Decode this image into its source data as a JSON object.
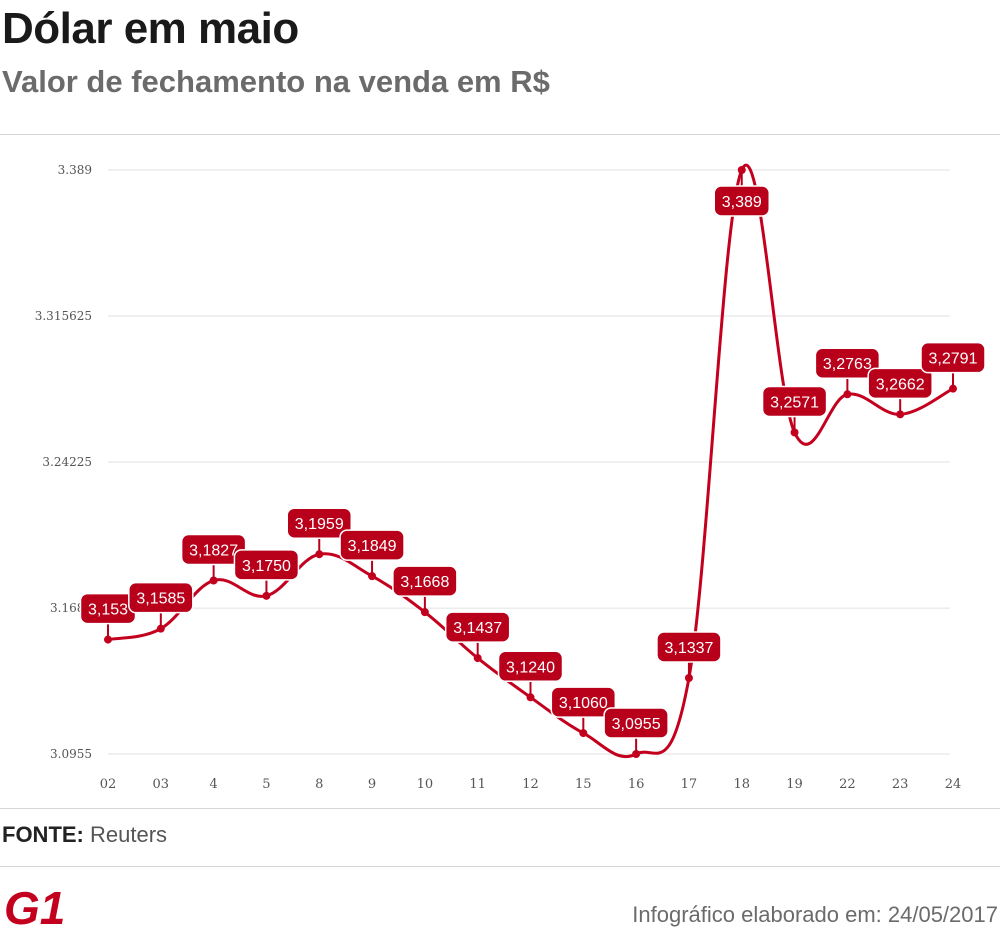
{
  "header": {
    "title": "Dólar em maio",
    "subtitle": "Valor de fechamento na venda em R$"
  },
  "footer": {
    "source_label": "FONTE:",
    "source_value": "Reuters",
    "logo_text": "G1",
    "credit": "Infográfico elaborado em: 24/05/2017"
  },
  "colors": {
    "series": "#c4001f",
    "label_bg": "#b8001b",
    "grid": "#e0e0e0"
  },
  "chart_data": {
    "type": "line",
    "title": "Dólar em maio",
    "subtitle": "Valor de fechamento na venda em R$",
    "xlabel": "",
    "ylabel": "",
    "ylim": [
      3.0955,
      3.389
    ],
    "yticks": [
      "3.0955",
      "3.1688",
      "3.24225",
      "3.315625",
      "3.389"
    ],
    "grid": true,
    "legend": "none",
    "categories": [
      "02",
      "03",
      "4",
      "5",
      "8",
      "9",
      "10",
      "11",
      "12",
      "15",
      "16",
      "17",
      "18",
      "19",
      "22",
      "23",
      "24"
    ],
    "series": [
      {
        "values": [
          3.153,
          3.1585,
          3.1827,
          3.175,
          3.1959,
          3.1849,
          3.1668,
          3.1437,
          3.124,
          3.106,
          3.0955,
          3.1337,
          3.389,
          3.2571,
          3.2763,
          3.2662,
          3.2791
        ],
        "labels": [
          "3,153",
          "3,1585",
          "3,1827",
          "3,1750",
          "3,1959",
          "3,1849",
          "3,1668",
          "3,1437",
          "3,1240",
          "3,1060",
          "3,0955",
          "3,1337",
          "3,389",
          "3,2571",
          "3,2763",
          "3,2662",
          "3,2791"
        ]
      }
    ]
  }
}
